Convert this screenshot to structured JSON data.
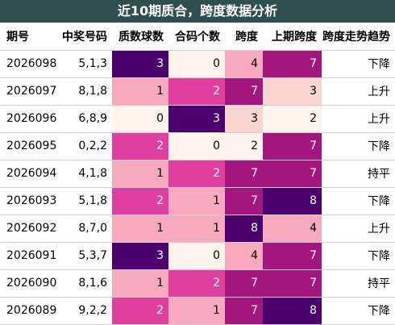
{
  "title": "近10期质合，跨度数据分析",
  "headers": [
    "期号",
    "中奖号码",
    "质数球数",
    "合码个数",
    "跨度",
    "上期跨度",
    "跨度走势趋势"
  ],
  "rows": [
    {
      "period": "2026098",
      "numbers": "5,1,3",
      "prime": 3,
      "composite": 0,
      "span": 4,
      "prev_span": 7,
      "trend": "下降"
    },
    {
      "period": "2026097",
      "numbers": "8,1,8",
      "prime": 1,
      "composite": 2,
      "span": 7,
      "prev_span": 3,
      "trend": "上升"
    },
    {
      "period": "2026096",
      "numbers": "6,8,9",
      "prime": 0,
      "composite": 3,
      "span": 3,
      "prev_span": 2,
      "trend": "上升"
    },
    {
      "period": "2026095",
      "numbers": "0,2,2",
      "prime": 2,
      "composite": 0,
      "span": 2,
      "prev_span": 7,
      "trend": "下降"
    },
    {
      "period": "2026094",
      "numbers": "4,1,8",
      "prime": 1,
      "composite": 2,
      "span": 7,
      "prev_span": 7,
      "trend": "持平"
    },
    {
      "period": "2026093",
      "numbers": "5,1,8",
      "prime": 2,
      "composite": 1,
      "span": 7,
      "prev_span": 8,
      "trend": "下降"
    },
    {
      "period": "2026092",
      "numbers": "8,7,0",
      "prime": 1,
      "composite": 1,
      "span": 8,
      "prev_span": 4,
      "trend": "上升"
    },
    {
      "period": "2026091",
      "numbers": "5,3,7",
      "prime": 3,
      "composite": 0,
      "span": 4,
      "prev_span": 7,
      "trend": "下降"
    },
    {
      "period": "2026090",
      "numbers": "8,1,6",
      "prime": 1,
      "composite": 2,
      "span": 7,
      "prev_span": 7,
      "trend": "持平"
    },
    {
      "period": "2026089",
      "numbers": "9,2,2",
      "prime": 2,
      "composite": 1,
      "span": 7,
      "prev_span": 8,
      "trend": "下降"
    }
  ],
  "colors": {
    "title_bg": "#2f4f4f",
    "heat_ramp": [
      "#fff3ee",
      "#fcd5d0",
      "#f9a9bd",
      "#e03fa0",
      "#a3167d",
      "#4b006e"
    ]
  }
}
